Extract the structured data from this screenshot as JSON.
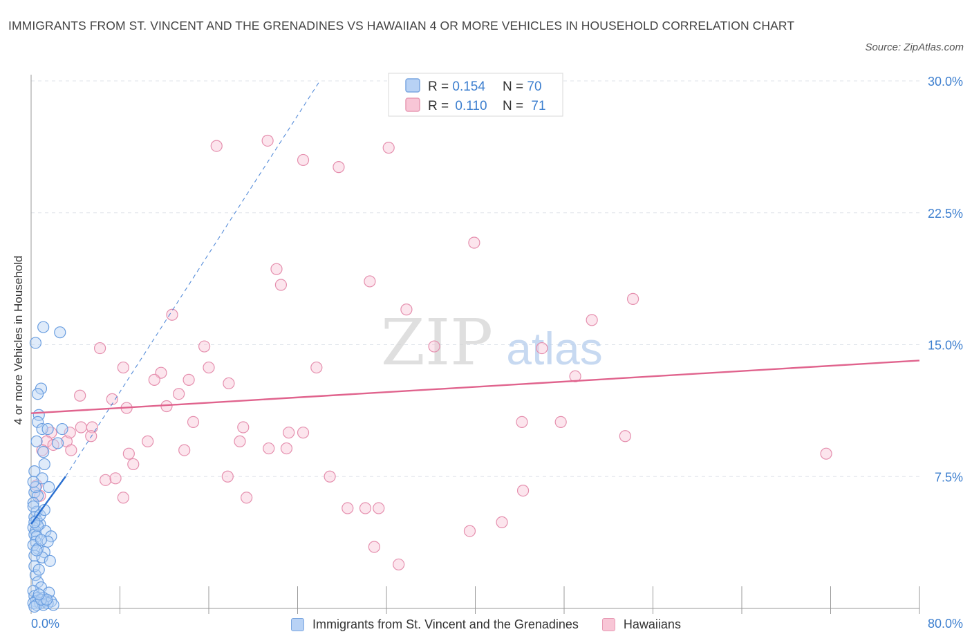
{
  "title": "IMMIGRANTS FROM ST. VINCENT AND THE GRENADINES VS HAWAIIAN 4 OR MORE VEHICLES IN HOUSEHOLD CORRELATION CHART",
  "source": "Source: ZipAtlas.com",
  "watermark": {
    "zip": "ZIP",
    "atlas": "atlas"
  },
  "colors": {
    "blue_fill": "#b8d2f5",
    "blue_stroke": "#6a9ee0",
    "blue_line": "#2a6fd0",
    "pink_fill": "#f8c6d6",
    "pink_stroke": "#e58fae",
    "pink_line": "#e0638d",
    "tick_label": "#3d7fcf",
    "grid": "#dfe3ea"
  },
  "legend": {
    "rows": [
      {
        "r_label": "R = ",
        "r_value": "0.154",
        "n_label": "N = ",
        "n_value": "70"
      },
      {
        "r_label": "R = ",
        "r_value": "0.110",
        "n_label": "N = ",
        "n_value": "71"
      }
    ]
  },
  "chart_data": {
    "type": "scatter",
    "title": "IMMIGRANTS FROM ST. VINCENT AND THE GRENADINES VS HAWAIIAN 4 OR MORE VEHICLES IN HOUSEHOLD CORRELATION CHART",
    "xlabel": "",
    "ylabel": "4 or more Vehicles in Household",
    "xlim": [
      0,
      80
    ],
    "ylim": [
      0,
      30
    ],
    "x_tick_labels": [
      "0.0%",
      "80.0%"
    ],
    "y_ticks": [
      7.5,
      15.0,
      22.5,
      30.0
    ],
    "y_tick_labels": [
      "7.5%",
      "15.0%",
      "22.5%",
      "30.0%"
    ],
    "grid": true,
    "legend_position": "top-center",
    "series": [
      {
        "name": "Immigrants from St. Vincent and the Grenadines",
        "color": "blue",
        "R": 0.154,
        "N": 70,
        "trend": {
          "x": [
            0.0,
            3.1
          ],
          "y": [
            4.8,
            7.5
          ]
        },
        "trend_extension": {
          "x": [
            3.1,
            26.0
          ],
          "y": [
            7.5,
            30.0
          ]
        },
        "points": [
          [
            0.4,
            15.1
          ],
          [
            1.1,
            16.0
          ],
          [
            2.6,
            15.7
          ],
          [
            0.9,
            12.5
          ],
          [
            0.6,
            12.2
          ],
          [
            0.7,
            11.0
          ],
          [
            0.6,
            10.6
          ],
          [
            1.0,
            10.2
          ],
          [
            1.5,
            10.2
          ],
          [
            2.8,
            10.2
          ],
          [
            0.5,
            9.5
          ],
          [
            2.4,
            9.4
          ],
          [
            1.1,
            8.9
          ],
          [
            1.2,
            8.2
          ],
          [
            0.3,
            7.8
          ],
          [
            1.0,
            7.4
          ],
          [
            1.6,
            6.9
          ],
          [
            0.3,
            6.6
          ],
          [
            0.6,
            6.4
          ],
          [
            0.2,
            6.0
          ],
          [
            0.5,
            5.5
          ],
          [
            0.3,
            5.2
          ],
          [
            0.5,
            5.0
          ],
          [
            0.8,
            4.8
          ],
          [
            0.2,
            4.6
          ],
          [
            0.4,
            4.4
          ],
          [
            1.3,
            4.4
          ],
          [
            0.3,
            4.2
          ],
          [
            0.5,
            4.1
          ],
          [
            1.8,
            4.1
          ],
          [
            0.4,
            3.8
          ],
          [
            1.5,
            3.8
          ],
          [
            0.2,
            3.6
          ],
          [
            0.6,
            3.4
          ],
          [
            1.2,
            3.2
          ],
          [
            0.3,
            3.0
          ],
          [
            1.0,
            2.9
          ],
          [
            1.7,
            2.7
          ],
          [
            0.4,
            1.9
          ],
          [
            0.6,
            1.5
          ],
          [
            0.9,
            1.2
          ],
          [
            0.2,
            1.0
          ],
          [
            1.6,
            0.9
          ],
          [
            0.3,
            0.7
          ],
          [
            0.6,
            0.6
          ],
          [
            1.1,
            0.6
          ],
          [
            0.4,
            0.4
          ],
          [
            1.3,
            0.4
          ],
          [
            1.8,
            0.4
          ],
          [
            0.2,
            0.3
          ],
          [
            0.8,
            0.3
          ],
          [
            1.5,
            0.3
          ],
          [
            0.5,
            0.2
          ],
          [
            1.1,
            0.2
          ],
          [
            2.0,
            0.2
          ],
          [
            0.3,
            0.1
          ],
          [
            0.9,
            0.5
          ],
          [
            1.4,
            0.5
          ],
          [
            0.7,
            0.8
          ],
          [
            0.2,
            5.8
          ],
          [
            0.4,
            6.9
          ],
          [
            0.8,
            5.3
          ],
          [
            0.6,
            4.7
          ],
          [
            1.2,
            5.6
          ],
          [
            0.3,
            4.9
          ],
          [
            0.5,
            3.3
          ],
          [
            0.9,
            3.9
          ],
          [
            0.3,
            2.4
          ],
          [
            0.7,
            2.2
          ],
          [
            0.2,
            7.2
          ]
        ]
      },
      {
        "name": "Hawaiians",
        "color": "pink",
        "R": 0.11,
        "N": 71,
        "trend": {
          "x": [
            0.0,
            80.0
          ],
          "y": [
            11.1,
            14.1
          ]
        },
        "points": [
          [
            16.7,
            26.3
          ],
          [
            21.3,
            26.6
          ],
          [
            24.5,
            25.5
          ],
          [
            27.7,
            25.1
          ],
          [
            32.2,
            26.2
          ],
          [
            39.9,
            20.8
          ],
          [
            22.1,
            19.3
          ],
          [
            22.5,
            18.4
          ],
          [
            30.5,
            18.6
          ],
          [
            54.2,
            17.6
          ],
          [
            12.7,
            16.7
          ],
          [
            33.8,
            17.0
          ],
          [
            50.5,
            16.4
          ],
          [
            6.2,
            14.8
          ],
          [
            15.6,
            14.9
          ],
          [
            36.3,
            14.9
          ],
          [
            46.0,
            14.8
          ],
          [
            8.3,
            13.7
          ],
          [
            11.7,
            13.4
          ],
          [
            16.0,
            13.7
          ],
          [
            25.7,
            13.7
          ],
          [
            11.1,
            13.0
          ],
          [
            14.2,
            13.0
          ],
          [
            17.8,
            12.8
          ],
          [
            49.0,
            13.2
          ],
          [
            4.4,
            12.1
          ],
          [
            13.3,
            12.2
          ],
          [
            7.3,
            11.9
          ],
          [
            8.6,
            11.4
          ],
          [
            12.2,
            11.5
          ],
          [
            4.5,
            10.3
          ],
          [
            5.5,
            10.3
          ],
          [
            14.6,
            10.6
          ],
          [
            19.1,
            10.3
          ],
          [
            23.2,
            10.0
          ],
          [
            24.5,
            10.0
          ],
          [
            44.2,
            10.6
          ],
          [
            47.7,
            10.6
          ],
          [
            1.8,
            10.0
          ],
          [
            1.4,
            9.5
          ],
          [
            3.2,
            9.5
          ],
          [
            10.5,
            9.5
          ],
          [
            18.8,
            9.5
          ],
          [
            53.5,
            9.8
          ],
          [
            1.0,
            9.0
          ],
          [
            3.6,
            9.0
          ],
          [
            5.4,
            9.8
          ],
          [
            8.8,
            8.8
          ],
          [
            13.8,
            9.0
          ],
          [
            21.4,
            9.1
          ],
          [
            23.0,
            9.1
          ],
          [
            71.6,
            8.8
          ],
          [
            9.2,
            8.2
          ],
          [
            6.7,
            7.3
          ],
          [
            7.6,
            7.4
          ],
          [
            17.7,
            7.5
          ],
          [
            26.9,
            7.5
          ],
          [
            0.5,
            7.0
          ],
          [
            0.8,
            6.4
          ],
          [
            8.3,
            6.3
          ],
          [
            19.4,
            6.3
          ],
          [
            44.3,
            6.7
          ],
          [
            28.5,
            5.7
          ],
          [
            30.1,
            5.7
          ],
          [
            31.3,
            5.7
          ],
          [
            39.5,
            4.4
          ],
          [
            42.4,
            4.9
          ],
          [
            30.9,
            3.5
          ],
          [
            33.1,
            2.5
          ],
          [
            3.5,
            10.0
          ],
          [
            2.0,
            9.3
          ]
        ]
      }
    ]
  }
}
